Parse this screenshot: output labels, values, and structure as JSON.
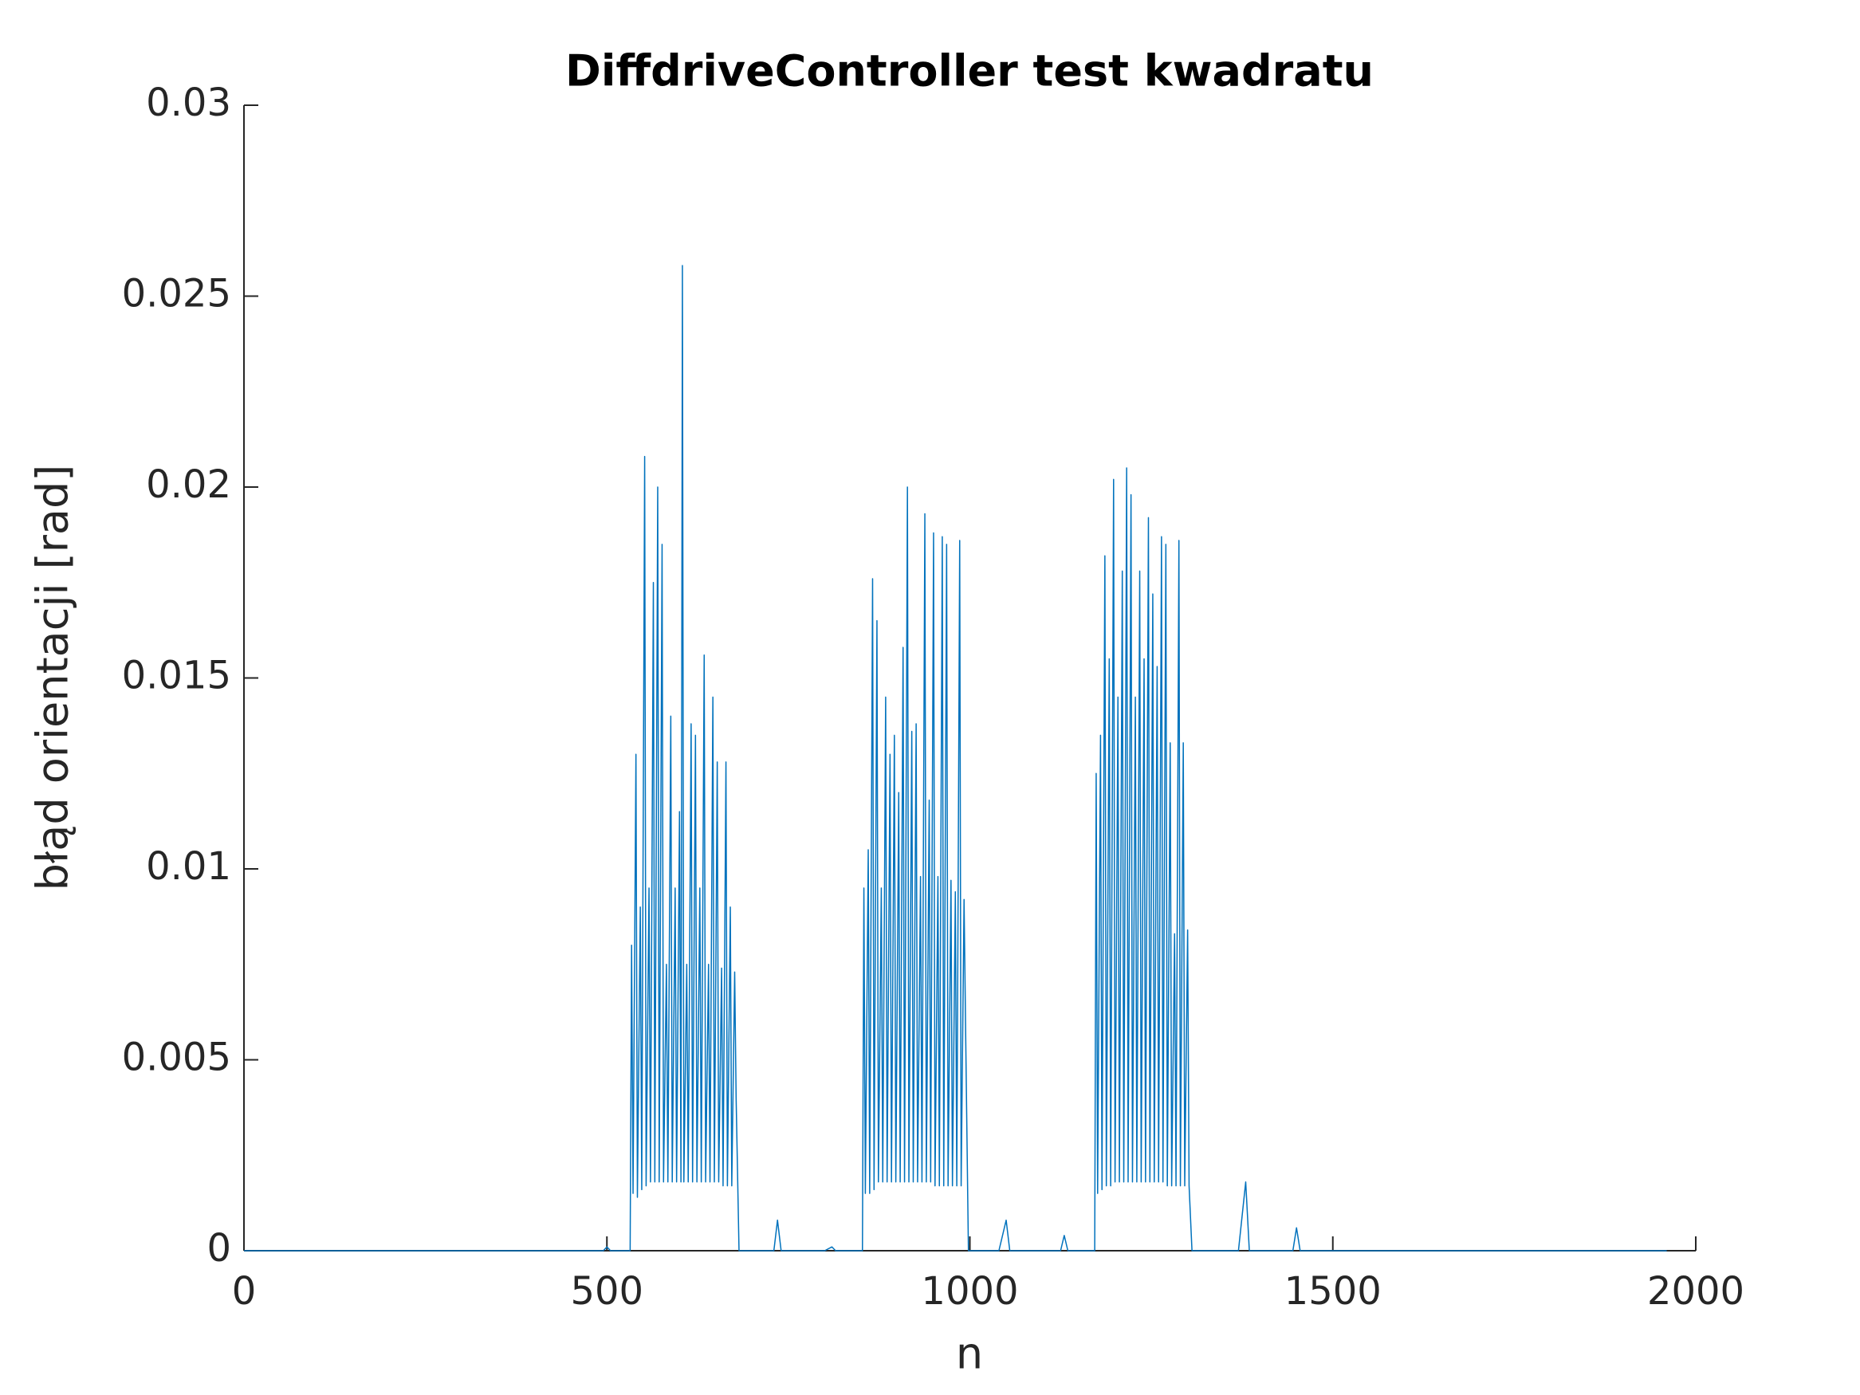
{
  "chart_data": {
    "type": "line",
    "title": "DiffdriveController test kwadratu",
    "x_label": "n",
    "y_label": "błąd orientacji [rad]",
    "color": "#0072bd",
    "x": [
      0,
      495,
      500,
      505,
      532,
      534,
      536,
      540,
      542,
      546,
      548,
      552,
      554,
      558,
      560,
      564,
      566,
      570,
      572,
      576,
      578,
      582,
      584,
      588,
      590,
      594,
      596,
      600,
      602,
      604,
      606,
      610,
      612,
      616,
      618,
      622,
      624,
      628,
      630,
      634,
      636,
      640,
      642,
      646,
      648,
      652,
      654,
      658,
      660,
      664,
      666,
      670,
      672,
      676,
      678,
      682,
      700,
      730,
      735,
      740,
      800,
      810,
      815,
      852,
      854,
      856,
      860,
      862,
      866,
      868,
      872,
      874,
      878,
      880,
      884,
      886,
      890,
      892,
      896,
      898,
      902,
      904,
      908,
      910,
      914,
      916,
      920,
      922,
      926,
      928,
      932,
      934,
      938,
      940,
      944,
      946,
      950,
      952,
      956,
      958,
      962,
      964,
      968,
      970,
      974,
      976,
      980,
      982,
      986,
      988,
      992,
      994,
      998,
      1040,
      1050,
      1055,
      1125,
      1130,
      1135,
      1172,
      1174,
      1176,
      1180,
      1182,
      1186,
      1188,
      1192,
      1194,
      1198,
      1200,
      1204,
      1206,
      1210,
      1212,
      1216,
      1218,
      1222,
      1224,
      1228,
      1230,
      1234,
      1236,
      1240,
      1242,
      1246,
      1248,
      1252,
      1254,
      1258,
      1260,
      1264,
      1266,
      1270,
      1272,
      1276,
      1278,
      1282,
      1284,
      1288,
      1290,
      1294,
      1296,
      1300,
      1302,
      1306,
      1370,
      1380,
      1385,
      1445,
      1450,
      1455,
      1960
    ],
    "values": [
      0,
      0,
      0.0001,
      0,
      0,
      0.008,
      0.0015,
      0.013,
      0.0014,
      0.009,
      0.0016,
      0.0208,
      0.0017,
      0.0095,
      0.0018,
      0.0175,
      0.0018,
      0.02,
      0.0018,
      0.0185,
      0.0018,
      0.0075,
      0.0018,
      0.014,
      0.0018,
      0.0095,
      0.0018,
      0.0115,
      0.0018,
      0.0258,
      0.0018,
      0.0075,
      0.0018,
      0.0138,
      0.0018,
      0.0135,
      0.0018,
      0.0095,
      0.0018,
      0.0156,
      0.0018,
      0.0075,
      0.0018,
      0.0145,
      0.0018,
      0.0128,
      0.0018,
      0.0074,
      0.0017,
      0.0128,
      0.0017,
      0.009,
      0.0017,
      0.0073,
      0.004,
      0,
      0,
      0,
      0.0008,
      0,
      0,
      0.0001,
      0,
      0,
      0.0095,
      0.0015,
      0.0105,
      0.0015,
      0.0176,
      0.0016,
      0.0165,
      0.0018,
      0.0095,
      0.0018,
      0.0145,
      0.0018,
      0.013,
      0.0018,
      0.0135,
      0.0018,
      0.012,
      0.0018,
      0.0158,
      0.0018,
      0.02,
      0.0018,
      0.0136,
      0.0018,
      0.0138,
      0.0018,
      0.0098,
      0.0018,
      0.0193,
      0.0018,
      0.0118,
      0.0018,
      0.0188,
      0.0017,
      0.0098,
      0.0017,
      0.0187,
      0.0017,
      0.0185,
      0.0017,
      0.0097,
      0.0017,
      0.0094,
      0.0017,
      0.0186,
      0.0017,
      0.0092,
      0.006,
      0,
      0,
      0.0008,
      0,
      0,
      0.0004,
      0,
      0,
      0.0125,
      0.0015,
      0.0135,
      0.0016,
      0.0182,
      0.0017,
      0.0155,
      0.0017,
      0.0202,
      0.0018,
      0.0145,
      0.0018,
      0.0178,
      0.0018,
      0.0205,
      0.0018,
      0.0198,
      0.0018,
      0.0145,
      0.0018,
      0.0178,
      0.0018,
      0.0155,
      0.0018,
      0.0192,
      0.0018,
      0.0172,
      0.0018,
      0.0153,
      0.0018,
      0.0187,
      0.0018,
      0.0185,
      0.0017,
      0.0133,
      0.0017,
      0.0083,
      0.0017,
      0.0186,
      0.0017,
      0.0133,
      0.0017,
      0.0084,
      0.0017,
      0,
      0,
      0.0018,
      0,
      0,
      0.0006,
      0,
      0
    ],
    "xlim": [
      0,
      2000
    ],
    "xticks": [
      0,
      500,
      1000,
      1500,
      2000
    ],
    "ylim": [
      0,
      0.03
    ],
    "yticks": [
      0,
      0.005,
      0.01,
      0.015,
      0.02,
      0.025,
      0.03
    ]
  }
}
